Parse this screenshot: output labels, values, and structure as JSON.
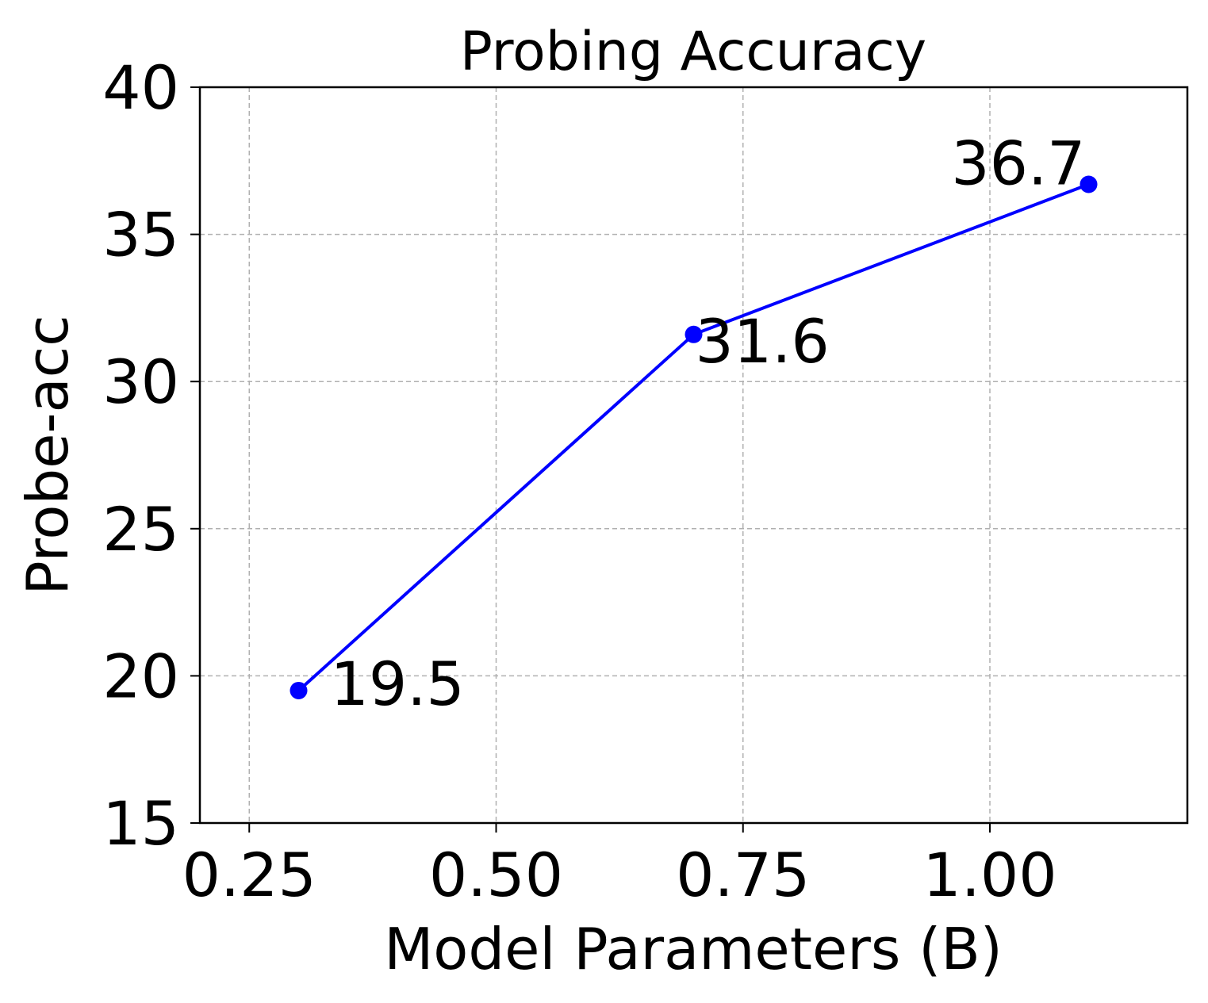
{
  "chart_data": {
    "type": "line",
    "title": "Probing Accuracy",
    "xlabel": "Model Parameters (B)",
    "ylabel": "Probe-acc",
    "xlim": [
      0.2,
      1.2
    ],
    "ylim": [
      15,
      40
    ],
    "x_ticks": [
      0.25,
      0.5,
      0.75,
      1.0
    ],
    "x_tick_labels": [
      "0.25",
      "0.50",
      "0.75",
      "1.00"
    ],
    "y_ticks": [
      15,
      20,
      25,
      30,
      35,
      40
    ],
    "y_tick_labels": [
      "15",
      "20",
      "25",
      "30",
      "35",
      "40"
    ],
    "grid": true,
    "series": [
      {
        "color": "#0000ff",
        "marker": "circle",
        "x": [
          0.3,
          0.7,
          1.1
        ],
        "y": [
          19.5,
          31.6,
          36.7
        ],
        "labels": [
          "19.5",
          "31.6",
          "36.7"
        ]
      }
    ]
  }
}
